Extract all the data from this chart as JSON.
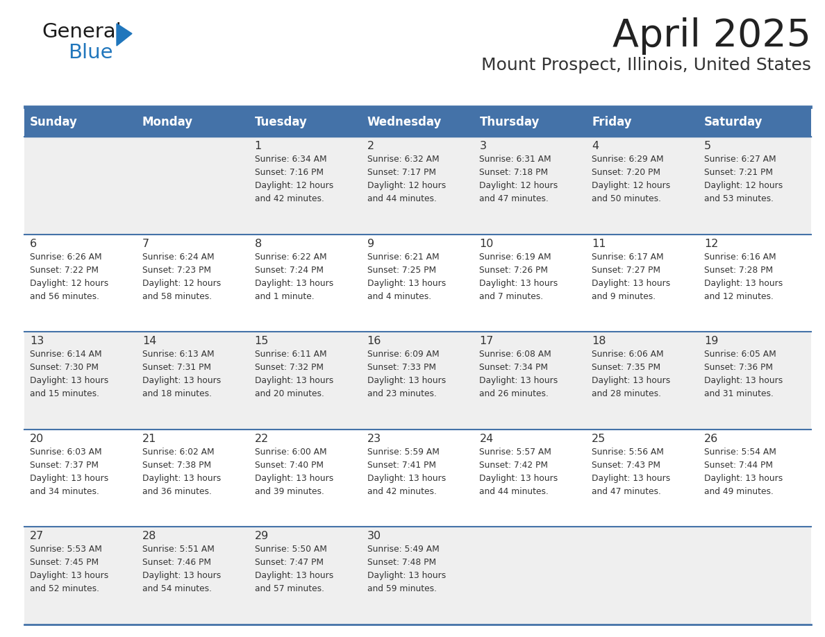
{
  "title": "April 2025",
  "subtitle": "Mount Prospect, Illinois, United States",
  "days_of_week": [
    "Sunday",
    "Monday",
    "Tuesday",
    "Wednesday",
    "Thursday",
    "Friday",
    "Saturday"
  ],
  "header_bg": "#4472a8",
  "header_text": "#ffffff",
  "row_bg_odd": "#efefef",
  "row_bg_even": "#ffffff",
  "cell_text": "#333333",
  "border_color": "#4472a8",
  "title_color": "#222222",
  "subtitle_color": "#333333",
  "logo_general_color": "#1a1a1a",
  "logo_blue_color": "#2076bc",
  "triangle_color": "#2076bc",
  "weeks": [
    [
      {
        "day": "",
        "info": ""
      },
      {
        "day": "",
        "info": ""
      },
      {
        "day": "1",
        "info": "Sunrise: 6:34 AM\nSunset: 7:16 PM\nDaylight: 12 hours\nand 42 minutes."
      },
      {
        "day": "2",
        "info": "Sunrise: 6:32 AM\nSunset: 7:17 PM\nDaylight: 12 hours\nand 44 minutes."
      },
      {
        "day": "3",
        "info": "Sunrise: 6:31 AM\nSunset: 7:18 PM\nDaylight: 12 hours\nand 47 minutes."
      },
      {
        "day": "4",
        "info": "Sunrise: 6:29 AM\nSunset: 7:20 PM\nDaylight: 12 hours\nand 50 minutes."
      },
      {
        "day": "5",
        "info": "Sunrise: 6:27 AM\nSunset: 7:21 PM\nDaylight: 12 hours\nand 53 minutes."
      }
    ],
    [
      {
        "day": "6",
        "info": "Sunrise: 6:26 AM\nSunset: 7:22 PM\nDaylight: 12 hours\nand 56 minutes."
      },
      {
        "day": "7",
        "info": "Sunrise: 6:24 AM\nSunset: 7:23 PM\nDaylight: 12 hours\nand 58 minutes."
      },
      {
        "day": "8",
        "info": "Sunrise: 6:22 AM\nSunset: 7:24 PM\nDaylight: 13 hours\nand 1 minute."
      },
      {
        "day": "9",
        "info": "Sunrise: 6:21 AM\nSunset: 7:25 PM\nDaylight: 13 hours\nand 4 minutes."
      },
      {
        "day": "10",
        "info": "Sunrise: 6:19 AM\nSunset: 7:26 PM\nDaylight: 13 hours\nand 7 minutes."
      },
      {
        "day": "11",
        "info": "Sunrise: 6:17 AM\nSunset: 7:27 PM\nDaylight: 13 hours\nand 9 minutes."
      },
      {
        "day": "12",
        "info": "Sunrise: 6:16 AM\nSunset: 7:28 PM\nDaylight: 13 hours\nand 12 minutes."
      }
    ],
    [
      {
        "day": "13",
        "info": "Sunrise: 6:14 AM\nSunset: 7:30 PM\nDaylight: 13 hours\nand 15 minutes."
      },
      {
        "day": "14",
        "info": "Sunrise: 6:13 AM\nSunset: 7:31 PM\nDaylight: 13 hours\nand 18 minutes."
      },
      {
        "day": "15",
        "info": "Sunrise: 6:11 AM\nSunset: 7:32 PM\nDaylight: 13 hours\nand 20 minutes."
      },
      {
        "day": "16",
        "info": "Sunrise: 6:09 AM\nSunset: 7:33 PM\nDaylight: 13 hours\nand 23 minutes."
      },
      {
        "day": "17",
        "info": "Sunrise: 6:08 AM\nSunset: 7:34 PM\nDaylight: 13 hours\nand 26 minutes."
      },
      {
        "day": "18",
        "info": "Sunrise: 6:06 AM\nSunset: 7:35 PM\nDaylight: 13 hours\nand 28 minutes."
      },
      {
        "day": "19",
        "info": "Sunrise: 6:05 AM\nSunset: 7:36 PM\nDaylight: 13 hours\nand 31 minutes."
      }
    ],
    [
      {
        "day": "20",
        "info": "Sunrise: 6:03 AM\nSunset: 7:37 PM\nDaylight: 13 hours\nand 34 minutes."
      },
      {
        "day": "21",
        "info": "Sunrise: 6:02 AM\nSunset: 7:38 PM\nDaylight: 13 hours\nand 36 minutes."
      },
      {
        "day": "22",
        "info": "Sunrise: 6:00 AM\nSunset: 7:40 PM\nDaylight: 13 hours\nand 39 minutes."
      },
      {
        "day": "23",
        "info": "Sunrise: 5:59 AM\nSunset: 7:41 PM\nDaylight: 13 hours\nand 42 minutes."
      },
      {
        "day": "24",
        "info": "Sunrise: 5:57 AM\nSunset: 7:42 PM\nDaylight: 13 hours\nand 44 minutes."
      },
      {
        "day": "25",
        "info": "Sunrise: 5:56 AM\nSunset: 7:43 PM\nDaylight: 13 hours\nand 47 minutes."
      },
      {
        "day": "26",
        "info": "Sunrise: 5:54 AM\nSunset: 7:44 PM\nDaylight: 13 hours\nand 49 minutes."
      }
    ],
    [
      {
        "day": "27",
        "info": "Sunrise: 5:53 AM\nSunset: 7:45 PM\nDaylight: 13 hours\nand 52 minutes."
      },
      {
        "day": "28",
        "info": "Sunrise: 5:51 AM\nSunset: 7:46 PM\nDaylight: 13 hours\nand 54 minutes."
      },
      {
        "day": "29",
        "info": "Sunrise: 5:50 AM\nSunset: 7:47 PM\nDaylight: 13 hours\nand 57 minutes."
      },
      {
        "day": "30",
        "info": "Sunrise: 5:49 AM\nSunset: 7:48 PM\nDaylight: 13 hours\nand 59 minutes."
      },
      {
        "day": "",
        "info": ""
      },
      {
        "day": "",
        "info": ""
      },
      {
        "day": "",
        "info": ""
      }
    ]
  ]
}
